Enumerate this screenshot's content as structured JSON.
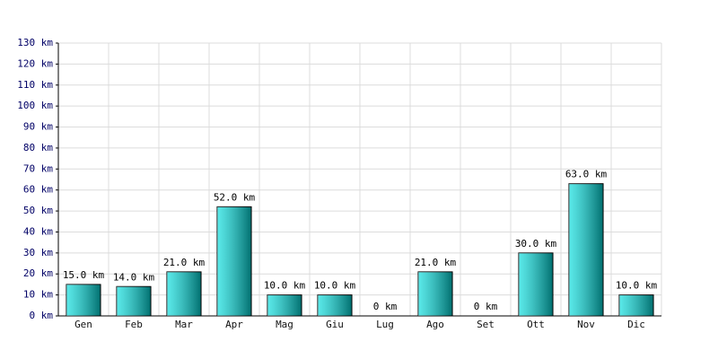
{
  "chart_data": {
    "type": "bar",
    "categories": [
      "Gen",
      "Feb",
      "Mar",
      "Apr",
      "Mag",
      "Giu",
      "Lug",
      "Ago",
      "Set",
      "Ott",
      "Nov",
      "Dic"
    ],
    "values": [
      15,
      14,
      21,
      52,
      10,
      10,
      0,
      21,
      0,
      30,
      63,
      10
    ],
    "value_labels": [
      "15.0 km",
      "14.0 km",
      "21.0 km",
      "52.0 km",
      "10.0 km",
      "10.0 km",
      "0 km",
      "21.0 km",
      "0 km",
      "30.0 km",
      "63.0 km",
      "10.0 km"
    ],
    "color": "#00dede",
    "ylim": [
      0,
      130
    ],
    "yticks": [
      {
        "value": 0,
        "label": "0 km"
      },
      {
        "value": 10,
        "label": "10 km"
      },
      {
        "value": 20,
        "label": "20 km"
      },
      {
        "value": 30,
        "label": "30 km"
      },
      {
        "value": 40,
        "label": "40 km"
      },
      {
        "value": 50,
        "label": "50 km"
      },
      {
        "value": 60,
        "label": "60 km"
      },
      {
        "value": 70,
        "label": "70 km"
      },
      {
        "value": 80,
        "label": "80 km"
      },
      {
        "value": 90,
        "label": "90 km"
      },
      {
        "value": 100,
        "label": "100 km"
      },
      {
        "value": 110,
        "label": "110 km"
      },
      {
        "value": 120,
        "label": "120 km"
      },
      {
        "value": 130,
        "label": "130 km"
      }
    ],
    "grid": true
  }
}
